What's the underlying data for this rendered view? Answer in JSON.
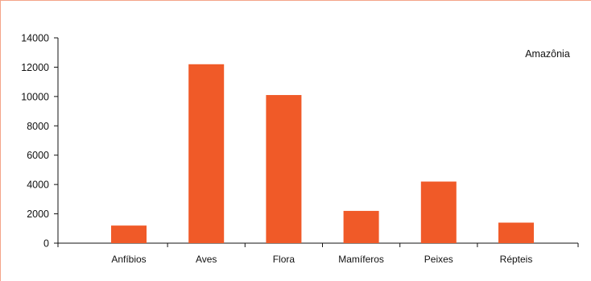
{
  "chart_data": {
    "type": "bar",
    "label": "Amazônia",
    "categories": [
      "Anfíbios",
      "Aves",
      "Flora",
      "Mamíferos",
      "Peixes",
      "Répteis"
    ],
    "values": [
      1200,
      12200,
      10100,
      2200,
      4200,
      1400
    ],
    "ylim": [
      0,
      14000
    ],
    "yticks": [
      0,
      2000,
      4000,
      6000,
      8000,
      10000,
      12000,
      14000
    ],
    "ytick_labels": [
      "0",
      "2000",
      "4000",
      "6000",
      "8000",
      "10000",
      "12000",
      "14000"
    ],
    "bar_color": "#f05a28",
    "frame_color": "#f4a58a",
    "grid": false,
    "legend": "none"
  }
}
